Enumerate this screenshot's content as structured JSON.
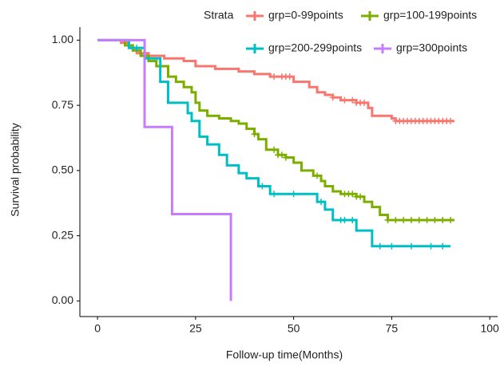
{
  "chart_data": {
    "type": "survival",
    "xlabel": "Follow-up time(Months)",
    "ylabel": "Survival probability",
    "legend_title": "Strata",
    "xlim": [
      -4.5,
      102
    ],
    "ylim": [
      -0.06,
      1.05
    ],
    "xticks": [
      0,
      25,
      50,
      75,
      100
    ],
    "yticks": [
      {
        "value": 0,
        "label": "0.00"
      },
      {
        "value": 0.25,
        "label": "0.25"
      },
      {
        "value": 0.5,
        "label": "0.50"
      },
      {
        "value": 0.75,
        "label": "0.75"
      },
      {
        "value": 1,
        "label": "1.00"
      }
    ],
    "series": [
      {
        "name": "grp=0-99points",
        "color": "#F8766D",
        "x": [
          0,
          6,
          8,
          10,
          13,
          17,
          22,
          25,
          30,
          36,
          40,
          44,
          50,
          54,
          56,
          58,
          60,
          62,
          66,
          69,
          70,
          75,
          76,
          91
        ],
        "values": [
          1,
          0.99,
          0.97,
          0.95,
          0.94,
          0.93,
          0.92,
          0.9,
          0.89,
          0.88,
          0.87,
          0.86,
          0.84,
          0.82,
          0.8,
          0.79,
          0.78,
          0.77,
          0.76,
          0.74,
          0.71,
          0.7,
          0.69,
          0.69
        ],
        "censor_x": [
          45,
          47,
          48,
          49,
          60,
          63,
          65,
          66,
          67,
          68,
          76,
          77,
          78,
          79,
          80,
          81,
          82,
          83,
          84,
          85,
          86,
          87,
          88,
          89,
          90
        ]
      },
      {
        "name": "grp=100-199points",
        "color": "#7CAE00",
        "x": [
          0,
          7,
          9,
          11,
          13,
          15,
          18,
          20,
          22,
          24,
          25,
          26,
          28,
          31,
          34,
          36,
          38,
          40,
          41,
          43,
          46,
          48,
          50,
          52,
          55,
          57,
          58,
          60,
          62,
          66,
          68,
          70,
          72,
          74,
          91
        ],
        "values": [
          1,
          0.98,
          0.96,
          0.94,
          0.92,
          0.9,
          0.86,
          0.84,
          0.82,
          0.8,
          0.76,
          0.73,
          0.71,
          0.7,
          0.69,
          0.68,
          0.66,
          0.64,
          0.62,
          0.58,
          0.56,
          0.55,
          0.53,
          0.5,
          0.48,
          0.46,
          0.44,
          0.42,
          0.41,
          0.4,
          0.38,
          0.36,
          0.33,
          0.31,
          0.31
        ],
        "censor_x": [
          40,
          45,
          46,
          47,
          48,
          56,
          63,
          64,
          65,
          66,
          67,
          74,
          76,
          78,
          80,
          82,
          84,
          86,
          88,
          90
        ]
      },
      {
        "name": "grp=200-299points",
        "color": "#00BFC4",
        "x": [
          0,
          8,
          12,
          16,
          18,
          23,
          24,
          26,
          28,
          31,
          33,
          36,
          38,
          41,
          44,
          56,
          58,
          60,
          66,
          70,
          90
        ],
        "values": [
          1,
          0.97,
          0.93,
          0.84,
          0.76,
          0.72,
          0.69,
          0.63,
          0.6,
          0.56,
          0.52,
          0.49,
          0.47,
          0.44,
          0.41,
          0.38,
          0.35,
          0.31,
          0.27,
          0.21,
          0.21
        ],
        "censor_x": [
          10,
          42,
          45,
          50,
          57,
          62,
          63,
          65,
          72,
          75,
          80,
          85,
          88
        ]
      },
      {
        "name": "grp=300points",
        "color": "#C77CFF",
        "x": [
          0,
          12,
          19,
          34
        ],
        "values": [
          1,
          0.667,
          0.333,
          0
        ],
        "censor_x": []
      }
    ]
  }
}
